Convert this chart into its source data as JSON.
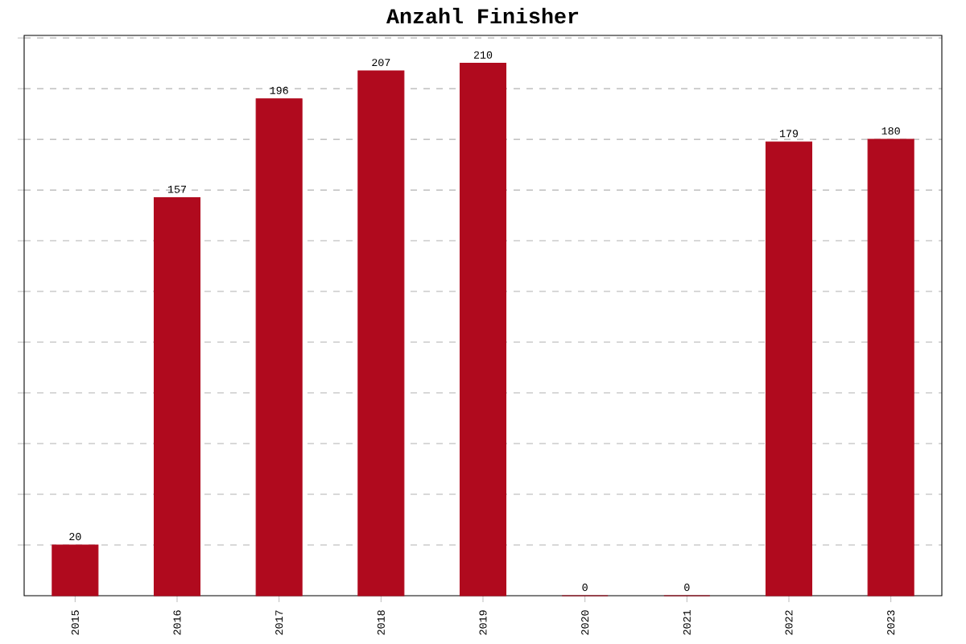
{
  "chart_data": {
    "type": "bar",
    "title": "Anzahl Finisher",
    "categories": [
      "2015",
      "2016",
      "2017",
      "2018",
      "2019",
      "2020",
      "2021",
      "2022",
      "2023"
    ],
    "values": [
      20,
      157,
      196,
      207,
      210,
      0,
      0,
      179,
      180
    ],
    "color": "#b00a1e",
    "data_labels": true,
    "grid": "y",
    "tick_labels": "x",
    "ylim": [
      0,
      221
    ],
    "yticks": [
      {
        "value": 20,
        "label": null
      },
      {
        "value": 40,
        "label": null
      },
      {
        "value": 60,
        "label": null
      },
      {
        "value": 80,
        "label": null
      },
      {
        "value": 100,
        "label": null
      },
      {
        "value": 120,
        "label": null
      },
      {
        "value": 140,
        "label": null
      },
      {
        "value": 160,
        "label": null
      },
      {
        "value": 180,
        "label": null
      },
      {
        "value": 200,
        "label": null
      },
      {
        "value": 220,
        "label": null
      }
    ]
  }
}
